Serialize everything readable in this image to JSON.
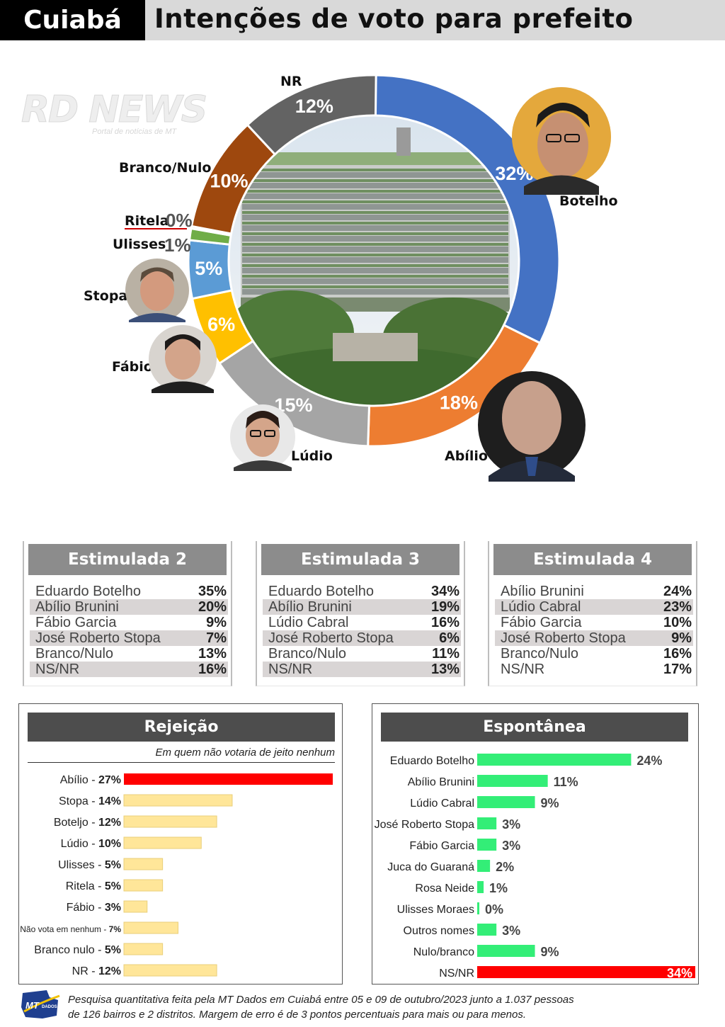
{
  "header": {
    "city": "Cuiabá",
    "title": "Intenções de voto para prefeito"
  },
  "watermark": {
    "main": "RD NEWS",
    "sub": "Portal de notícias de MT"
  },
  "chart_data": [
    {
      "type": "pie",
      "subtype": "donut",
      "slices": [
        {
          "label": "Botelho",
          "value": 32,
          "text": "32%",
          "color": "#4472c4"
        },
        {
          "label": "Abílio",
          "value": 18,
          "text": "18%",
          "color": "#ed7d31"
        },
        {
          "label": "Lúdio",
          "value": 15,
          "text": "15%",
          "color": "#a5a5a5"
        },
        {
          "label": "Fábio",
          "value": 6,
          "text": "6%",
          "color": "#ffc000"
        },
        {
          "label": "Stopa",
          "value": 5,
          "text": "5%",
          "color": "#5b9bd5"
        },
        {
          "label": "Ulisses",
          "value": 1,
          "text": "1%",
          "color": "#70ad47"
        },
        {
          "label": "Ritela",
          "value": 0,
          "text": "0%",
          "color": "#264478"
        },
        {
          "label": "Branco/Nulo",
          "value": 10,
          "text": "10%",
          "color": "#9e480e"
        },
        {
          "label": "NR",
          "value": 12,
          "text": "12%",
          "color": "#636363"
        }
      ]
    },
    {
      "type": "table",
      "title": "Estimulada 2",
      "rows": [
        {
          "name": "Eduardo Botelho",
          "value": "35%"
        },
        {
          "name": "Abílio Brunini",
          "value": "20%"
        },
        {
          "name": "Fábio Garcia",
          "value": "9%"
        },
        {
          "name": "José Roberto Stopa",
          "value": "7%"
        },
        {
          "name": "Branco/Nulo",
          "value": "13%"
        },
        {
          "name": "NS/NR",
          "value": "16%"
        }
      ]
    },
    {
      "type": "table",
      "title": "Estimulada 3",
      "rows": [
        {
          "name": "Eduardo Botelho",
          "value": "34%"
        },
        {
          "name": "Abílio Brunini",
          "value": "19%"
        },
        {
          "name": "Lúdio Cabral",
          "value": "16%"
        },
        {
          "name": "José Roberto Stopa",
          "value": "6%"
        },
        {
          "name": "Branco/Nulo",
          "value": "11%"
        },
        {
          "name": "NS/NR",
          "value": "13%"
        }
      ]
    },
    {
      "type": "table",
      "title": "Estimulada 4",
      "rows": [
        {
          "name": "Abílio Brunini",
          "value": "24%"
        },
        {
          "name": "Lúdio Cabral",
          "value": "23%"
        },
        {
          "name": "Fábio Garcia",
          "value": "10%"
        },
        {
          "name": "José Roberto Stopa",
          "value": "9%"
        },
        {
          "name": "Branco/Nulo",
          "value": "16%"
        },
        {
          "name": "NS/NR",
          "value": "17%"
        }
      ]
    },
    {
      "type": "bar",
      "orientation": "horizontal",
      "title": "Rejeição",
      "subtitle": "Em quem não votaria de jeito nenhum",
      "categories": [
        "Abílio",
        "Stopa",
        "Boteljo",
        "Lúdio",
        "Ulisses",
        "Ritela",
        "Fábio",
        "Não vota em nenhum",
        "Branco nulo",
        "NR"
      ],
      "values": [
        27,
        14,
        12,
        10,
        5,
        5,
        3,
        7,
        5,
        12
      ],
      "labels": [
        "27%",
        "14%",
        "12%",
        "10%",
        "5%",
        "5%",
        "3%",
        "7%",
        "5%",
        "12%"
      ],
      "colors": [
        "#ff0000",
        "#ffe699",
        "#ffe699",
        "#ffe699",
        "#ffe699",
        "#ffe699",
        "#ffe699",
        "#ffe699",
        "#ffe699",
        "#ffe699"
      ],
      "xlim": [
        0,
        27
      ]
    },
    {
      "type": "bar",
      "orientation": "horizontal",
      "title": "Espontânea",
      "categories": [
        "Eduardo Botelho",
        "Abílio Brunini",
        "Lúdio Cabral",
        "José Roberto Stopa",
        "Fábio Garcia",
        "Juca do Guaraná",
        "Rosa Neide",
        "Ulisses Moraes",
        "Outros nomes",
        "Nulo/branco",
        "NS/NR"
      ],
      "values": [
        24,
        11,
        9,
        3,
        3,
        2,
        1,
        0,
        3,
        9,
        34
      ],
      "labels": [
        "24%",
        "11%",
        "9%",
        "3%",
        "3%",
        "2%",
        "1%",
        "0%",
        "3%",
        "9%",
        "34%"
      ],
      "colors": [
        "#33ee77",
        "#33ee77",
        "#33ee77",
        "#33ee77",
        "#33ee77",
        "#33ee77",
        "#33ee77",
        "#33ee77",
        "#33ee77",
        "#33ee77",
        "#ff0000"
      ],
      "xlim": [
        0,
        34
      ]
    }
  ],
  "footer": {
    "logo_text": "MT",
    "logo_sub": "DADOS",
    "line1": "Pesquisa quantitativa feita pela MT Dados em Cuiabá entre 05 e 09 de outubro/2023 junto a 1.037 pessoas",
    "line2": "de 126 bairros e 2 distritos. Margem de erro é de 3 pontos percentuais para mais ou para menos."
  }
}
